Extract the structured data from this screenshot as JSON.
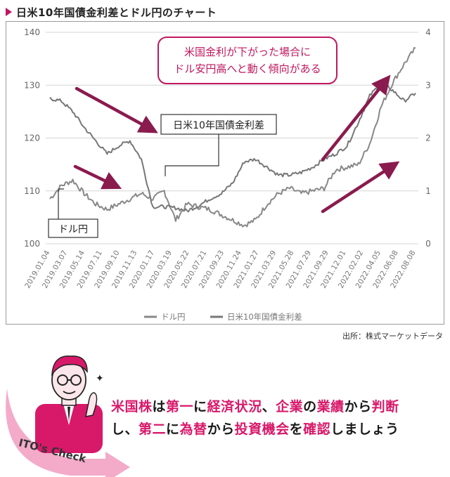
{
  "header": {
    "title": "日米10年国債金利差とドル円のチャート"
  },
  "source": "出所：株式マーケットデータ",
  "check_badge": "ITO's Check",
  "check_message": {
    "line1": [
      {
        "text": "米国株",
        "hl": true
      },
      {
        "text": "は",
        "hl": false
      },
      {
        "text": "第一",
        "hl": true
      },
      {
        "text": "に",
        "hl": false
      },
      {
        "text": "経済状況",
        "hl": true
      },
      {
        "text": "、",
        "hl": false
      },
      {
        "text": "企業",
        "hl": true
      },
      {
        "text": "の",
        "hl": false
      },
      {
        "text": "業績",
        "hl": true
      },
      {
        "text": "から",
        "hl": false
      },
      {
        "text": "判断",
        "hl": true
      }
    ],
    "line2": [
      {
        "text": "し、",
        "hl": false
      },
      {
        "text": "第二",
        "hl": true
      },
      {
        "text": "に",
        "hl": false
      },
      {
        "text": "為替",
        "hl": true
      },
      {
        "text": "から",
        "hl": false
      },
      {
        "text": "投資機会",
        "hl": true
      },
      {
        "text": "を",
        "hl": false
      },
      {
        "text": "確認",
        "hl": true
      },
      {
        "text": "しましょう",
        "hl": false
      }
    ]
  },
  "annotations": {
    "callout": [
      "米国金利が下がった場合に",
      "ドル安円高へと動く傾向がある"
    ],
    "label_spread": "日米10年国債金利差",
    "label_usdjpy": "ドル円"
  },
  "colors": {
    "accent": "#c0185f",
    "arrow": "#8a1b4e",
    "usdjpy": "#888888",
    "spread": "#777777"
  },
  "chart_data": {
    "type": "line",
    "x_ticks": [
      "2019.01.04",
      "2019.03.07",
      "2019.05.14",
      "2019.07.11",
      "2019.09.10",
      "2019.11.13",
      "2020.01.17",
      "2020.03.19",
      "2020.05.22",
      "2020.07.21",
      "2020.09.23",
      "2020.11.24",
      "2021.01.27",
      "2021.03.29",
      "2021.05.28",
      "2021.07.29",
      "2021.09.29",
      "2021.12.01",
      "2022.02.02",
      "2022.04.05",
      "2022.06.08",
      "2022.08.08"
    ],
    "y_left": {
      "ticks": [
        100,
        110,
        120,
        130,
        140
      ],
      "range": [
        100,
        140
      ]
    },
    "y_right": {
      "ticks": [
        0,
        1,
        2,
        3,
        4
      ],
      "range": [
        0,
        4
      ]
    },
    "legend": [
      "ドル円",
      "日米10年国債金利差"
    ],
    "series": [
      {
        "name": "ドル円",
        "axis": "left",
        "values": [
          108.5,
          111.0,
          112.0,
          109.5,
          107.5,
          106.5,
          107.5,
          108.5,
          109.5,
          108.5,
          110.0,
          104.5,
          107.5,
          107.0,
          106.5,
          105.5,
          104.5,
          103.5,
          104.5,
          107.5,
          109.5,
          110.5,
          109.5,
          110.0,
          110.5,
          114.0,
          114.5,
          115.0,
          119.0,
          126.0,
          130.5,
          134.0,
          137.0
        ]
      },
      {
        "name": "日米10年国債金利差",
        "axis": "right",
        "values": [
          2.75,
          2.7,
          2.5,
          2.2,
          1.95,
          1.7,
          1.85,
          1.95,
          1.6,
          0.7,
          0.7,
          0.68,
          0.62,
          0.72,
          0.85,
          0.95,
          1.15,
          1.55,
          1.6,
          1.45,
          1.3,
          1.3,
          1.35,
          1.45,
          1.6,
          1.7,
          1.85,
          2.3,
          2.8,
          3.05,
          2.9,
          2.7,
          2.85
        ]
      }
    ]
  }
}
